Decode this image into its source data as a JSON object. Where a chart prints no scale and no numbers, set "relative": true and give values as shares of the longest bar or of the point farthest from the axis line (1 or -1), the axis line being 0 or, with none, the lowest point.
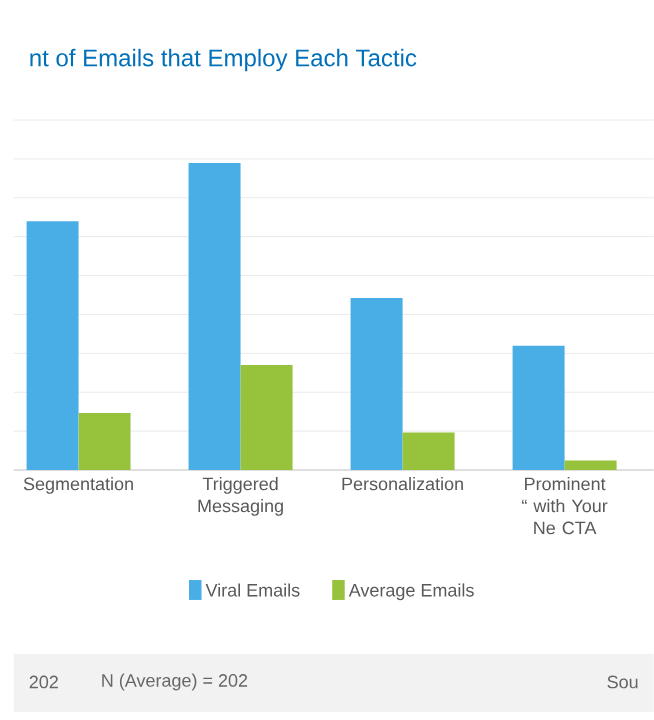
{
  "chart_data": {
    "type": "bar",
    "title": "nt of Emails that Employ Each Tactic",
    "relative": true,
    "categories": [
      "Segmentation",
      "Triggered Messaging",
      "Personalization",
      "Prominent “ with Your Ne CTA"
    ],
    "series": [
      {
        "name": "Viral Emails",
        "color": "#4aaee6",
        "values": [
          0.81,
          1,
          0.56,
          0.405
        ]
      },
      {
        "name": "Average  Emails",
        "color": "#97c23c",
        "values": [
          0.186,
          0.342,
          0.122,
          0.031
        ]
      }
    ],
    "grid": "y",
    "legend": "bottom",
    "annotations": [
      "202",
      "N (Average) = 202",
      "Sou"
    ]
  }
}
